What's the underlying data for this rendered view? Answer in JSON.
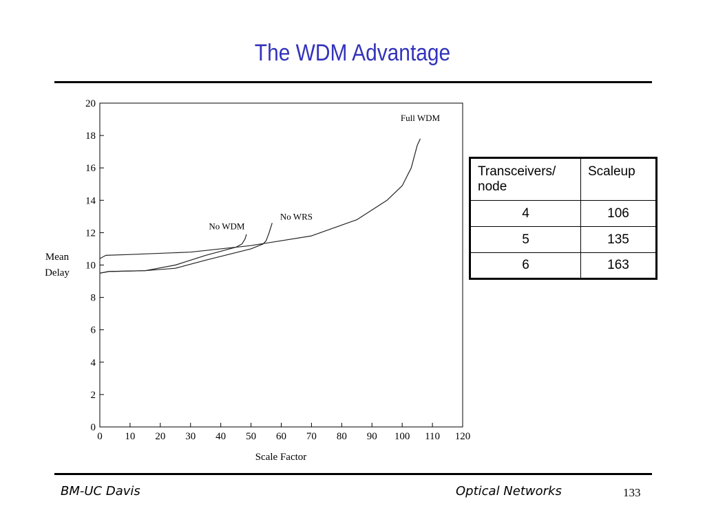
{
  "slide": {
    "title": "The WDM Advantage",
    "footer_left": "BM-UC Davis",
    "footer_center": "Optical Networks",
    "page_number": "133"
  },
  "chart_data": {
    "type": "line",
    "title": "",
    "xlabel": "Scale Factor",
    "ylabel": [
      "Mean",
      "Delay"
    ],
    "xlim": [
      0,
      120
    ],
    "ylim": [
      0,
      20
    ],
    "xticks": [
      0,
      10,
      20,
      30,
      40,
      50,
      60,
      70,
      80,
      90,
      100,
      110,
      120
    ],
    "yticks": [
      0,
      2,
      4,
      6,
      8,
      10,
      12,
      14,
      16,
      18,
      20
    ],
    "grid": false,
    "legend": "none",
    "series": [
      {
        "name": "Full WDM",
        "x": [
          0,
          2,
          10,
          30,
          50,
          70,
          85,
          95,
          100,
          103,
          105,
          106
        ],
        "y": [
          10.4,
          10.6,
          10.65,
          10.8,
          11.2,
          11.8,
          12.8,
          14.0,
          14.9,
          16.0,
          17.4,
          17.8
        ]
      },
      {
        "name": "No WDM",
        "x": [
          0,
          3,
          15,
          25,
          35,
          45,
          47,
          48,
          48.5
        ],
        "y": [
          9.5,
          9.6,
          9.65,
          10.0,
          10.6,
          11.1,
          11.3,
          11.6,
          11.9
        ]
      },
      {
        "name": "No WRS",
        "x": [
          0,
          3,
          15,
          25,
          35,
          50,
          54,
          55,
          56,
          57
        ],
        "y": [
          9.5,
          9.6,
          9.65,
          9.8,
          10.3,
          11.0,
          11.3,
          11.5,
          12.0,
          12.6
        ]
      }
    ],
    "annotations": [
      {
        "text": "Full WDM",
        "x": 106,
        "y": 18.9
      },
      {
        "text": "No WDM",
        "x": 42,
        "y": 12.2
      },
      {
        "text": "No WRS",
        "x": 65,
        "y": 12.8
      }
    ]
  },
  "table": {
    "headers": [
      "Transceivers/ node",
      "Scaleup"
    ],
    "rows": [
      [
        "4",
        "106"
      ],
      [
        "5",
        "135"
      ],
      [
        "6",
        "163"
      ]
    ]
  }
}
